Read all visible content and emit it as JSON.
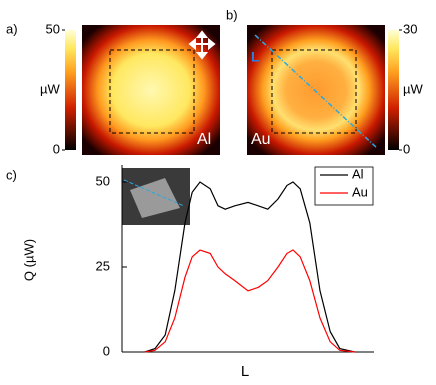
{
  "panel_labels": [
    "a)",
    "b)",
    "c)"
  ],
  "heatmaps": [
    {
      "label": "Al",
      "cbar_ticks": [
        0,
        50
      ],
      "cbar_unit": "µW"
    },
    {
      "label": "Au",
      "cbar_ticks": [
        0,
        30
      ],
      "cbar_unit": "µW",
      "line_label": "L"
    }
  ],
  "chart_data": {
    "type": "line",
    "ylabel": "Q (µW)",
    "xlabel": "L",
    "x": [
      3.8,
      5.5,
      7.2,
      8.8,
      10.5,
      11.7,
      13,
      14.7,
      16,
      17.2,
      18.8,
      21,
      22.7,
      24.3,
      26,
      27.5,
      28.5,
      29.7,
      31.3,
      33,
      34.7,
      36.3,
      38.8
    ],
    "series": [
      {
        "name": "Al",
        "color": "#000000",
        "values": [
          0,
          1,
          5,
          18,
          38,
          47,
          50,
          48,
          43,
          42,
          43,
          44,
          43,
          42,
          45,
          49,
          50,
          48,
          38,
          18,
          6,
          1,
          0
        ]
      },
      {
        "name": "Au",
        "color": "#ff0000",
        "values": [
          0,
          0.5,
          3,
          10,
          22,
          28,
          30,
          29,
          25,
          23,
          21,
          18,
          19,
          21,
          25,
          29,
          30,
          28,
          21,
          10,
          3,
          0.5,
          0
        ]
      }
    ],
    "xlim": [
      0,
      42
    ],
    "ylim": [
      0,
      55
    ],
    "yticks": [
      0,
      25,
      50
    ],
    "legend": "upper-right"
  }
}
